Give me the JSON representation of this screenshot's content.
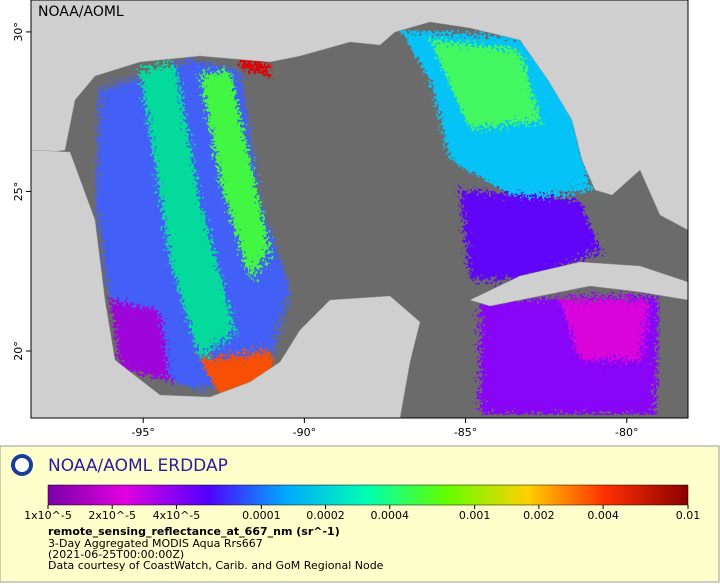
{
  "map": {
    "credit": "NOAA/AOML",
    "lonlim": [
      -98.48,
      -78.1
    ],
    "latlim": [
      17.9,
      31.0
    ],
    "lonticks": [
      {
        "value": -95,
        "label": "-95°"
      },
      {
        "value": -90,
        "label": "-90°"
      },
      {
        "value": -85,
        "label": "-85°"
      },
      {
        "value": -80,
        "label": "-80°"
      }
    ],
    "latticks": [
      {
        "value": 30,
        "label": "30°"
      },
      {
        "value": 25,
        "label": "25°"
      },
      {
        "value": 20,
        "label": "20°"
      }
    ]
  },
  "legend": {
    "brand": "NOAA/AOML ERDDAP",
    "log_scale": true,
    "range": [
      1e-05,
      0.01
    ],
    "ticks": [
      {
        "value": 1e-05,
        "label": "1x10^-5"
      },
      {
        "value": 2e-05,
        "label": "2x10^-5"
      },
      {
        "value": 4e-05,
        "label": "4x10^-5"
      },
      0.0001,
      0.0002,
      0.0004,
      0.001,
      0.002,
      0.004,
      0.01
    ],
    "variable": "remote_sensing_reflectance_at_667_nm (sr^-1)",
    "lines": [
      "3-Day Aggregated MODIS Aqua Rrs667",
      "(2021-06-25T00:00:00Z)",
      "Data courtesy of CoastWatch, Carib. and GoM Regional Node"
    ]
  }
}
